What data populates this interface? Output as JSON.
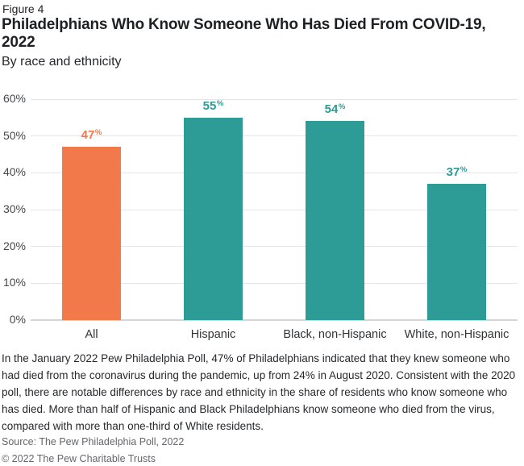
{
  "header": {
    "figure_label": "Figure 4",
    "title": "Philadelphians Who Know Someone Who Has Died From COVID-19, 2022",
    "subtitle": "By race and ethnicity"
  },
  "chart_data": {
    "type": "bar",
    "categories": [
      "All",
      "Hispanic",
      "Black, non-Hispanic",
      "White, non-Hispanic"
    ],
    "values": [
      47,
      55,
      54,
      37
    ],
    "value_suffix": "%",
    "bar_colors": [
      "#F2794A",
      "#2D9C96",
      "#2D9C96",
      "#2D9C96"
    ],
    "title": "Philadelphians Who Know Someone Who Has Died From COVID-19, 2022",
    "xlabel": "",
    "ylabel": "",
    "ylim": [
      0,
      60
    ],
    "ytick_labels": [
      "60%",
      "50%",
      "40%",
      "30%",
      "20%",
      "10%",
      "0%"
    ],
    "grid": true,
    "legend_position": "none"
  },
  "footer": {
    "note": "In the January 2022 Pew Philadelphia Poll, 47% of Philadelphians indicated that they knew someone who had died from the coronavirus during the pandemic, up from 24% in August 2020. Consistent with the 2020 poll, there are notable differences by race and ethnicity in the share of residents who know someone who has died. More than half of Hispanic and Black Philadelphians know someone who died from the virus, compared with more than one-third of White residents.",
    "source": "Source: The Pew Philadelphia Poll, 2022",
    "copyright": "© 2022 The Pew Charitable Trusts"
  },
  "colors": {
    "accent_orange": "#F2794A",
    "accent_teal": "#2D9C96",
    "gridline": "#E4E5E6",
    "baseline": "#D4D5D6",
    "axis_text": "#43474B",
    "title_text": "#1E2124",
    "body_text": "#26292C",
    "muted_text": "#63676B",
    "background": "#FFFFFF"
  }
}
